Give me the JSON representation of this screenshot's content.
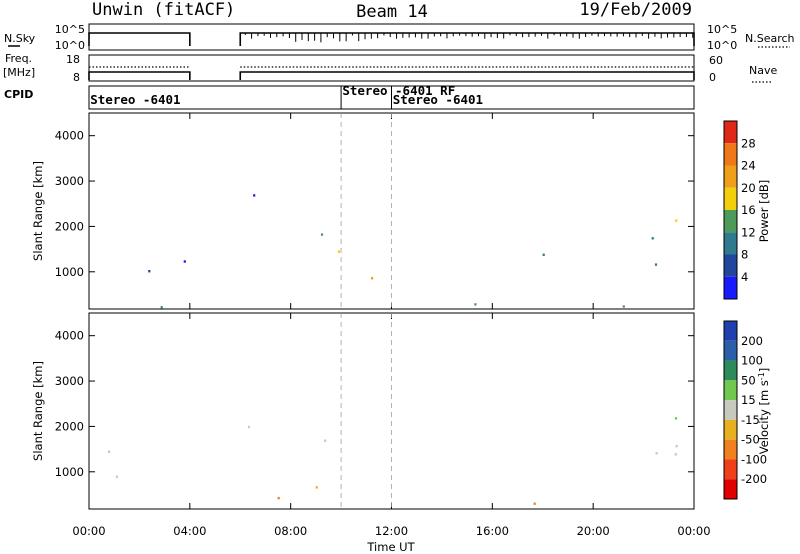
{
  "header": {
    "station": "Unwin (fitACF)",
    "beam": "Beam 14",
    "date": "19/Feb/2009"
  },
  "noise_panel": {
    "left_label": "N.Sky",
    "right_label": "N.Search",
    "left_ticks": [
      "10^5",
      "10^0"
    ],
    "right_ticks": [
      "10^5",
      "10^0"
    ]
  },
  "freq_panel": {
    "left_label_1": "Freq.",
    "left_label_2": "[MHz]",
    "right_label": "Nave",
    "left_ticks": [
      "18",
      "8"
    ],
    "right_ticks": [
      "60",
      "0"
    ]
  },
  "cpid_panel": {
    "label": "CPID",
    "entries": [
      {
        "t": 0.05,
        "row": 0,
        "text": "Stereo -6401"
      },
      {
        "t": 10.05,
        "row": -1,
        "text": "Stereo -6401 RF"
      },
      {
        "t": 12.05,
        "row": 0,
        "text": "Stereo -6401"
      }
    ],
    "boundaries": [
      10.0,
      12.0
    ]
  },
  "chart_data": [
    {
      "type": "heatmap",
      "title": "",
      "xlabel": "",
      "ylabel": "Slant Range [km]",
      "xlim": [
        0,
        24
      ],
      "ylim": [
        180,
        4500
      ],
      "yticks": [
        "1000",
        "2000",
        "3000",
        "4000"
      ],
      "colorbar_label": "Power [dB]",
      "colorbar_ticks": [
        "4",
        "8",
        "12",
        "16",
        "20",
        "24",
        "28"
      ],
      "colorbar_range": [
        0,
        32
      ],
      "data_gaps_hours": [
        [
          4.0,
          6.0
        ]
      ],
      "scatter_regions": [
        {
          "t": [
            0.0,
            4.0
          ],
          "range_km": [
            700,
            1700
          ],
          "power_db": 6
        },
        {
          "t": [
            6.1,
            10.0
          ],
          "range_km": [
            1500,
            2200
          ],
          "power_db": 11
        },
        {
          "t": [
            6.3,
            9.0
          ],
          "range_km": [
            2500,
            3250
          ],
          "power_db": 5
        },
        {
          "t": [
            7.5,
            11.2
          ],
          "range_km": [
            650,
            1200
          ],
          "power_db": 24
        },
        {
          "t": [
            8.5,
            11.5
          ],
          "range_km": [
            1250,
            1850
          ],
          "power_db": 14
        },
        {
          "t": [
            17.5,
            24.0
          ],
          "range_km": [
            1000,
            2300
          ],
          "power_db": 12
        },
        {
          "t": [
            0.0,
            24.0
          ],
          "range_km": [
            180,
            450
          ],
          "power_db": 9
        }
      ]
    },
    {
      "type": "heatmap",
      "title": "",
      "xlabel": "Time UT",
      "ylabel": "Slant Range [km]",
      "xlim": [
        0,
        24
      ],
      "ylim": [
        180,
        4500
      ],
      "xticks": [
        "00:00",
        "04:00",
        "08:00",
        "12:00",
        "16:00",
        "20:00",
        "00:00"
      ],
      "yticks": [
        "1000",
        "2000",
        "3000",
        "4000"
      ],
      "colorbar_label": "Velocity [m s^-1]",
      "colorbar_ticks": [
        "200",
        "100",
        "50",
        "15",
        "-15",
        "-50",
        "-100",
        "-200"
      ],
      "scatter_regions": [
        {
          "t": [
            0.0,
            4.0
          ],
          "range_km": [
            700,
            1700
          ],
          "velocity": 0
        },
        {
          "t": [
            6.1,
            10.0
          ],
          "range_km": [
            1500,
            2200
          ],
          "velocity": -10
        },
        {
          "t": [
            7.5,
            10.5
          ],
          "range_km": [
            650,
            1100
          ],
          "velocity": -70
        },
        {
          "t": [
            9.0,
            11.5
          ],
          "range_km": [
            1000,
            1900
          ],
          "velocity": 30
        },
        {
          "t": [
            17.5,
            24.0
          ],
          "range_km": [
            1000,
            2300
          ],
          "velocity": 0
        },
        {
          "t": [
            0.0,
            24.0
          ],
          "range_km": [
            180,
            450
          ],
          "velocity": -60
        }
      ]
    }
  ],
  "colors": {
    "power": [
      "#1a1aff",
      "#22469e",
      "#2f7a8c",
      "#4e9a5a",
      "#f2ce0c",
      "#f0a018",
      "#f07818",
      "#e02818"
    ],
    "velocity": [
      "#2040b0",
      "#2a60a8",
      "#2d8a5a",
      "#70c850",
      "#c8c8be",
      "#e8b020",
      "#f08020",
      "#f04018",
      "#e00000"
    ]
  }
}
